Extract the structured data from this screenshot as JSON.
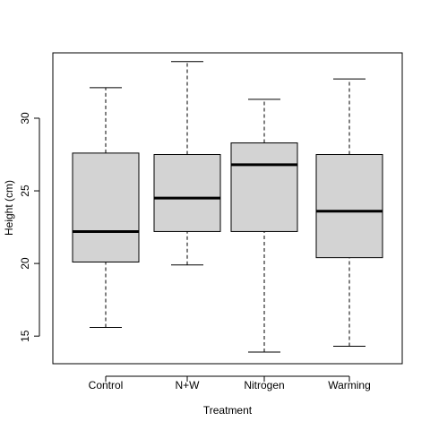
{
  "chart_data": {
    "type": "box",
    "title": "",
    "xlabel": "Treatment",
    "ylabel": "Height (cm)",
    "ylim": [
      13.1,
      34.5
    ],
    "y_ticks": [
      15,
      20,
      25,
      30
    ],
    "grid": false,
    "legend": "none",
    "box_fill": "#d3d3d3",
    "line_color": "#000000",
    "categories": [
      "Control",
      "N+W",
      "Nitrogen",
      "Warming"
    ],
    "boxes": [
      {
        "category": "Control",
        "min": 15.6,
        "q1": 20.1,
        "median": 22.2,
        "q3": 27.6,
        "max": 32.1
      },
      {
        "category": "N+W",
        "min": 19.9,
        "q1": 22.2,
        "median": 24.5,
        "q3": 27.5,
        "max": 33.9
      },
      {
        "category": "Nitrogen",
        "min": 13.9,
        "q1": 22.2,
        "median": 26.8,
        "q3": 28.3,
        "max": 31.3
      },
      {
        "category": "Warming",
        "min": 14.3,
        "q1": 20.4,
        "median": 23.6,
        "q3": 27.5,
        "max": 32.7
      }
    ]
  }
}
